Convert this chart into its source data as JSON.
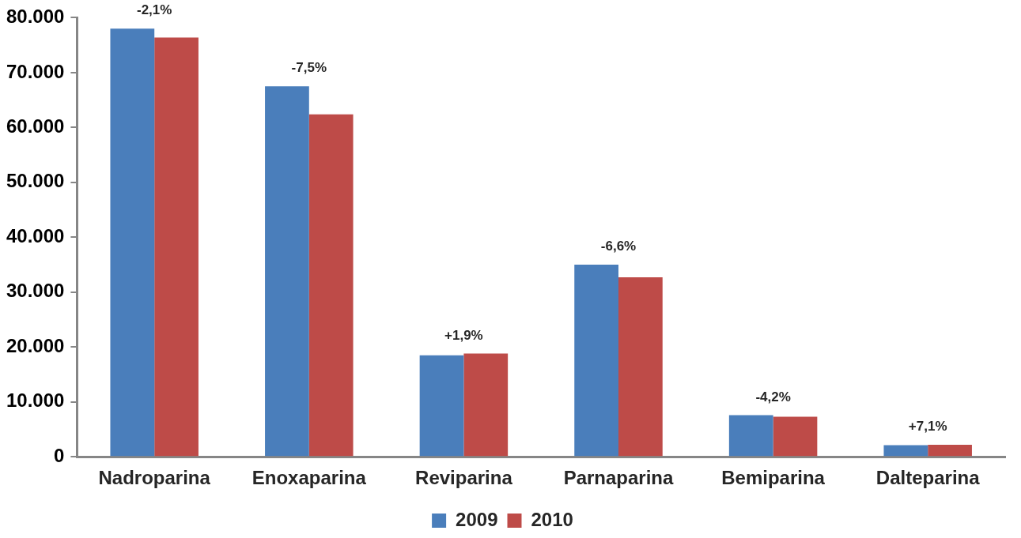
{
  "chart_data": {
    "type": "bar",
    "categories": [
      "Nadroparina",
      "Enoxaparina",
      "Reviparina",
      "Parnaparina",
      "Bemiparina",
      "Dalteparina"
    ],
    "series": [
      {
        "name": "2009",
        "color": "#4a7ebb",
        "values": [
          78000,
          67500,
          18500,
          35000,
          7600,
          2100
        ]
      },
      {
        "name": "2010",
        "color": "#be4b48",
        "values": [
          76400,
          62400,
          18800,
          32700,
          7300,
          2200
        ]
      }
    ],
    "ylim": [
      0,
      80000
    ],
    "yticks": [
      {
        "value": 0,
        "label": "0"
      },
      {
        "value": 10000,
        "label": "10.000"
      },
      {
        "value": 20000,
        "label": "20.000"
      },
      {
        "value": 30000,
        "label": "30.000"
      },
      {
        "value": 40000,
        "label": "40.000"
      },
      {
        "value": 50000,
        "label": "50.000"
      },
      {
        "value": 60000,
        "label": "60.000"
      },
      {
        "value": 70000,
        "label": "70.000"
      },
      {
        "value": 80000,
        "label": "80.000"
      }
    ],
    "annotations": [
      {
        "text": "-2,1%",
        "x": "Nadroparina",
        "y": 78000
      },
      {
        "text": "-7,5%",
        "x": "Enoxaparina",
        "y": 67500
      },
      {
        "text": "+1,9%",
        "x": "Reviparina",
        "y": 18800
      },
      {
        "text": "-6,6%",
        "x": "Parnaparina",
        "y": 35000
      },
      {
        "text": "-4,2%",
        "x": "Bemiparina",
        "y": 7600
      },
      {
        "text": "+7,1%",
        "x": "Dalteparina",
        "y": 2200
      }
    ],
    "grid": false,
    "legend": "bottom"
  }
}
